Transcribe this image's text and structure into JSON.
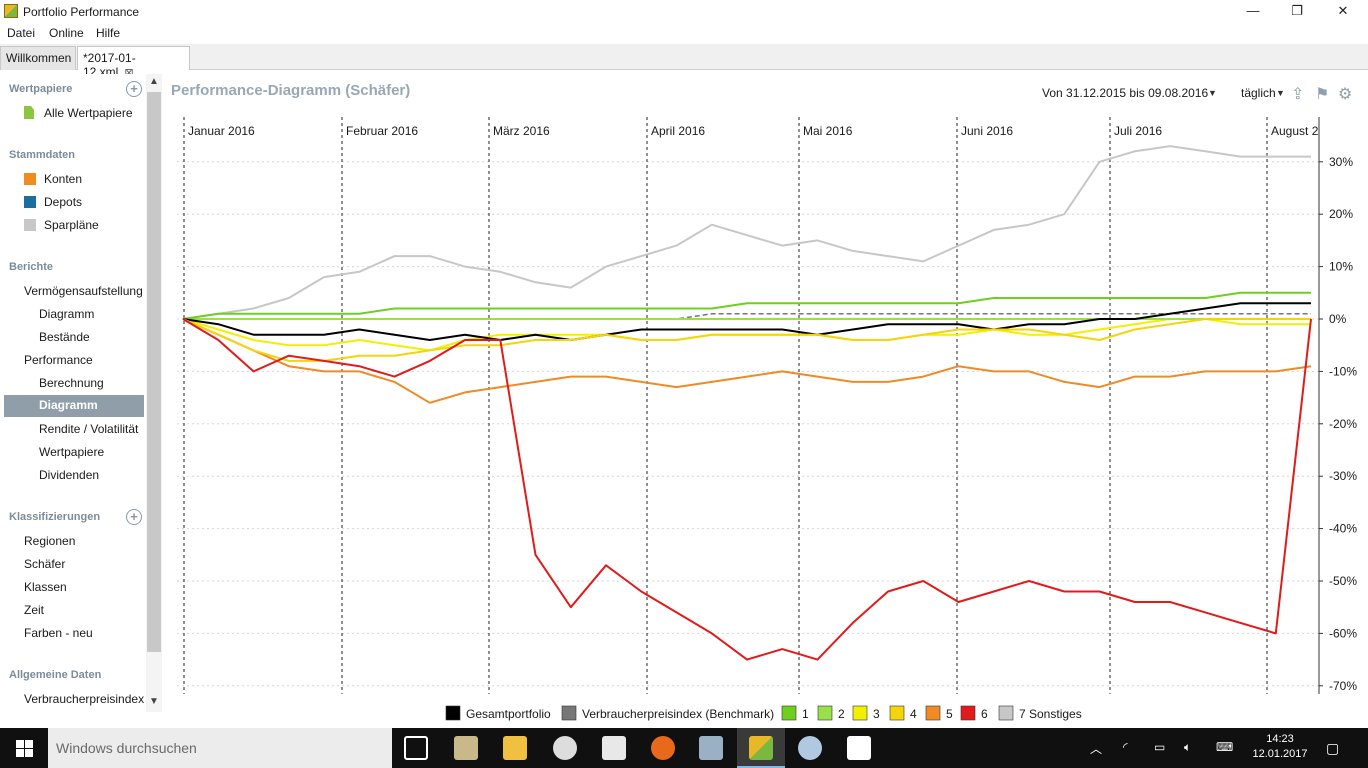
{
  "window": {
    "title": "Portfolio Performance"
  },
  "window_controls": {
    "minimize": "—",
    "maximize": "❐",
    "close": "✕"
  },
  "menu": [
    "Datei",
    "Online",
    "Hilfe"
  ],
  "tabs": [
    {
      "label": "Willkommen"
    },
    {
      "label": "*2017-01-12.xml"
    }
  ],
  "sidebar": {
    "sections": [
      {
        "title": "Wertpapiere"
      },
      {
        "title": "Stammdaten"
      },
      {
        "title": "Berichte"
      },
      {
        "title": "Klassifizierungen"
      },
      {
        "title": "Allgemeine Daten"
      }
    ],
    "wertpapiere": [
      "Alle Wertpapiere"
    ],
    "stammdaten": [
      {
        "label": "Konten",
        "color": "#f28c1e"
      },
      {
        "label": "Depots",
        "color": "#1a6fa0"
      },
      {
        "label": "Sparpläne",
        "color": "#c8c8c8"
      }
    ],
    "berichte": [
      "Vermögensaufstellung",
      "Diagramm",
      "Bestände",
      "Performance",
      "Berechnung",
      "Diagramm",
      "Rendite / Volatilität",
      "Wertpapiere",
      "Dividenden"
    ],
    "klassifizierungen": [
      "Regionen",
      "Schäfer",
      "Klassen",
      "Zeit",
      "Farben - neu"
    ],
    "allgemeine": [
      "Verbraucherpreisindex"
    ]
  },
  "header": {
    "title": "Performance-Diagramm (Schäfer)",
    "range": "Von 31.12.2015 bis 09.08.2016",
    "interval": "täglich"
  },
  "chart_data": {
    "type": "line",
    "months": [
      "Januar 2016",
      "Februar 2016",
      "März 2016",
      "April 2016",
      "Mai 2016",
      "Juni 2016",
      "Juli 2016",
      "August 2"
    ],
    "ylim": [
      -70,
      35
    ],
    "yticks": [
      "30%",
      "20%",
      "10%",
      "0%",
      "-10%",
      "-20%",
      "-30%",
      "-40%",
      "-50%",
      "-60%",
      "-70%"
    ],
    "grid": true,
    "legend": "bottom",
    "series": [
      {
        "name": "Gesamtportfolio",
        "color": "#000000",
        "values": [
          0,
          -1,
          -3,
          -3,
          -3,
          -2,
          -3,
          -4,
          -3,
          -4,
          -3,
          -4,
          -3,
          -2,
          -2,
          -2,
          -2,
          -2,
          -3,
          -2,
          -1,
          -1,
          -1,
          -2,
          -1,
          -1,
          0,
          0,
          1,
          2,
          3,
          3,
          3
        ]
      },
      {
        "name": "Verbraucherpreisindex (Benchmark)",
        "color": "#777777",
        "dashed": true,
        "values": [
          0,
          0,
          0,
          0,
          0,
          0,
          0,
          0,
          0,
          0,
          0,
          0,
          0,
          0,
          0,
          1,
          1,
          1,
          1,
          1,
          1,
          1,
          1,
          1,
          1,
          1,
          1,
          1,
          1,
          1,
          1,
          1,
          1
        ]
      },
      {
        "name": "1",
        "color": "#6fcf1e",
        "values": [
          0,
          1,
          1,
          1,
          1,
          1,
          2,
          2,
          2,
          2,
          2,
          2,
          2,
          2,
          2,
          2,
          3,
          3,
          3,
          3,
          3,
          3,
          3,
          4,
          4,
          4,
          4,
          4,
          4,
          4,
          5,
          5,
          5
        ]
      },
      {
        "name": "2",
        "color": "#99e04a",
        "values": [
          0,
          0,
          0,
          0,
          0,
          0,
          0,
          0,
          0,
          0,
          0,
          0,
          0,
          0,
          0,
          0,
          0,
          0,
          0,
          0,
          0,
          0,
          0,
          0,
          0,
          0,
          0,
          0,
          0,
          0,
          0,
          0,
          0
        ]
      },
      {
        "name": "3",
        "color": "#f3ef00",
        "values": [
          0,
          -2,
          -4,
          -5,
          -5,
          -4,
          -5,
          -6,
          -4,
          -3,
          -3,
          -3,
          -3,
          -4,
          -4,
          -3,
          -3,
          -3,
          -3,
          -4,
          -4,
          -3,
          -3,
          -2,
          -3,
          -3,
          -2,
          -1,
          0,
          0,
          -1,
          -1,
          -1
        ]
      },
      {
        "name": "4",
        "color": "#f4d40a",
        "values": [
          0,
          -3,
          -6,
          -8,
          -8,
          -7,
          -7,
          -6,
          -5,
          -5,
          -4,
          -4,
          -3,
          -4,
          -4,
          -3,
          -3,
          -3,
          -3,
          -4,
          -4,
          -3,
          -2,
          -2,
          -2,
          -3,
          -4,
          -2,
          -1,
          0,
          0,
          0,
          0
        ]
      },
      {
        "name": "5",
        "color": "#f08a24",
        "values": [
          0,
          -3,
          -6,
          -9,
          -10,
          -10,
          -12,
          -16,
          -14,
          -13,
          -12,
          -11,
          -11,
          -12,
          -13,
          -12,
          -11,
          -10,
          -11,
          -12,
          -12,
          -11,
          -9,
          -10,
          -10,
          -12,
          -13,
          -11,
          -11,
          -10,
          -10,
          -10,
          -9
        ]
      },
      {
        "name": "6",
        "color": "#e11b1b",
        "values": [
          0,
          -4,
          -10,
          -7,
          -8,
          -9,
          -11,
          -8,
          -4,
          -4,
          -45,
          -55,
          -47,
          -52,
          -56,
          -60,
          -65,
          -63,
          -65,
          -58,
          -52,
          -50,
          -54,
          -52,
          -50,
          -52,
          -52,
          -54,
          -54,
          -56,
          -58,
          -60,
          0
        ]
      },
      {
        "name": "7 Sonstiges",
        "color": "#c7c7c7",
        "values": [
          0,
          1,
          2,
          4,
          8,
          9,
          12,
          12,
          10,
          9,
          7,
          6,
          10,
          12,
          14,
          18,
          16,
          14,
          15,
          13,
          12,
          11,
          14,
          17,
          18,
          20,
          30,
          32,
          33,
          32,
          31,
          31,
          31
        ]
      }
    ]
  },
  "taskbar": {
    "search_placeholder": "Windows durchsuchen",
    "time": "14:23",
    "date": "12.01.2017"
  }
}
